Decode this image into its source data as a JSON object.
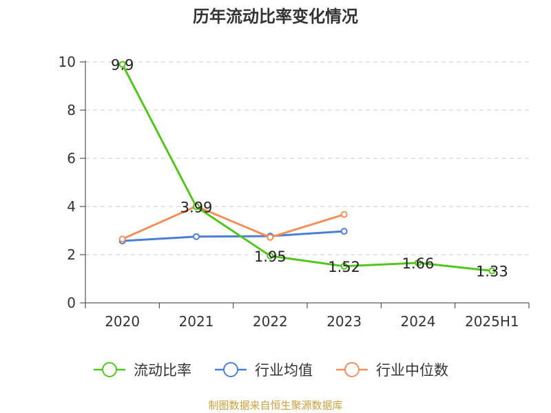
{
  "title": "历年流动比率变化情况",
  "source": "制图数据来自恒生聚源数据库",
  "chart_data": {
    "type": "line",
    "title": "历年流动比率变化情况",
    "categories": [
      "2020",
      "2021",
      "2022",
      "2023",
      "2024",
      "2025H1"
    ],
    "ylim": [
      0,
      10
    ],
    "yticks": [
      0,
      2,
      4,
      6,
      8,
      10
    ],
    "grid": true,
    "legend_position": "bottom",
    "series": [
      {
        "name": "流动比率",
        "color": "#52c41a",
        "values": [
          9.9,
          3.99,
          1.95,
          1.52,
          1.66,
          1.33
        ],
        "labels": [
          "9.9",
          "3.99",
          "1.95",
          "1.52",
          "1.66",
          "1.33"
        ]
      },
      {
        "name": "行业均值",
        "color": "#4a7fd4",
        "values": [
          2.57,
          2.75,
          2.77,
          2.97,
          null,
          null
        ]
      },
      {
        "name": "行业中位数",
        "color": "#f28e5a",
        "values": [
          2.65,
          4.01,
          2.72,
          3.67,
          null,
          null
        ]
      }
    ]
  }
}
